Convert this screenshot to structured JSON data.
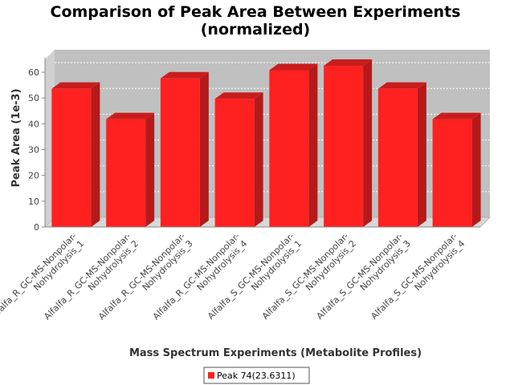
{
  "chart_data": {
    "type": "bar",
    "title_line1": "Comparison of Peak Area Between Experiments",
    "title_line2": "(normalized)",
    "xlabel": "Mass Spectrum Experiments (Metabolite Profiles)",
    "ylabel": "Peak Area (1e-3)",
    "ylim": [
      0,
      65
    ],
    "yticks": [
      0,
      10,
      20,
      30,
      40,
      50,
      60
    ],
    "grid": true,
    "legend_position": "bottom",
    "categories": [
      [
        "Alfalfa_R_GC-MS-Nonpolar-",
        "Nohydrolysis_1"
      ],
      [
        "Alfalfa_R_GC-MS-Nonpolar-",
        "Nohydrolysis_2"
      ],
      [
        "Alfalfa_R_GC-MS-Nonpolar-",
        "Nohydrolysis_3"
      ],
      [
        "Alfalfa_R_GC-MS-Nonpolar-",
        "Nohydrolysis_4"
      ],
      [
        "Alfalfa_S_GC-MS-Nonpolar-",
        "Nohydrolysis_1"
      ],
      [
        "Alfalfa_S_GC-MS-Nonpolar-",
        "Nohydrolysis_2"
      ],
      [
        "Alfalfa_S_GC-MS-Nonpolar-",
        "Nohydrolysis_3"
      ],
      [
        "Alfalfa_S_GC-MS-Nonpolar-",
        "Nohydrolysis_4"
      ]
    ],
    "series": [
      {
        "name": "Peak 74(23.6311)",
        "color": "#ff2020",
        "values": [
          53.6,
          41.8,
          57.6,
          49.7,
          60.8,
          62.5,
          53.6,
          41.8
        ]
      }
    ]
  }
}
